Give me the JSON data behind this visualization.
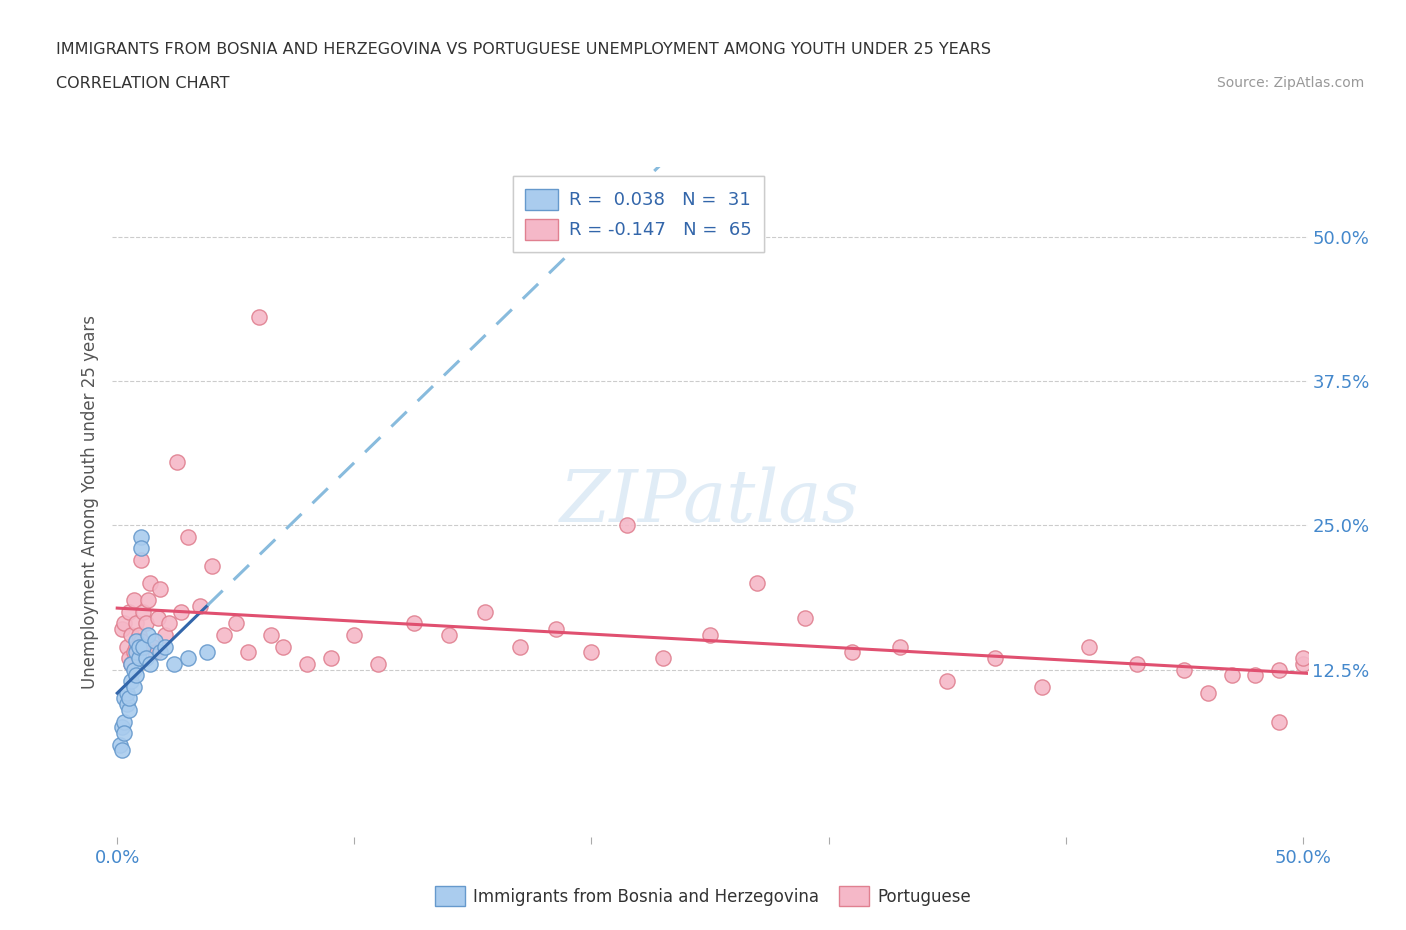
{
  "title_line1": "IMMIGRANTS FROM BOSNIA AND HERZEGOVINA VS PORTUGUESE UNEMPLOYMENT AMONG YOUTH UNDER 25 YEARS",
  "title_line2": "CORRELATION CHART",
  "source_text": "Source: ZipAtlas.com",
  "ylabel": "Unemployment Among Youth under 25 years",
  "xlim": [
    -0.002,
    0.502
  ],
  "ylim": [
    -0.02,
    0.56
  ],
  "xtick_positions": [
    0.0,
    0.1,
    0.2,
    0.3,
    0.4,
    0.5
  ],
  "xtick_labels": [
    "0.0%",
    "",
    "",
    "",
    "",
    "50.0%"
  ],
  "ytick_values": [
    0.125,
    0.25,
    0.375,
    0.5
  ],
  "ytick_labels": [
    "12.5%",
    "25.0%",
    "37.5%",
    "50.0%"
  ],
  "color_bosnia_fill": "#aaccee",
  "color_bosnia_edge": "#6699cc",
  "color_portuguese_fill": "#f5b8c8",
  "color_portuguese_edge": "#e08090",
  "color_blue_line": "#3366aa",
  "color_blue_dash": "#88bbdd",
  "color_pink_line": "#e05070",
  "watermark_text": "ZIPatlas",
  "bosnia_x": [
    0.001,
    0.002,
    0.002,
    0.003,
    0.003,
    0.003,
    0.004,
    0.004,
    0.005,
    0.005,
    0.006,
    0.006,
    0.007,
    0.007,
    0.008,
    0.008,
    0.008,
    0.009,
    0.009,
    0.01,
    0.01,
    0.011,
    0.012,
    0.013,
    0.014,
    0.016,
    0.018,
    0.02,
    0.024,
    0.03,
    0.038
  ],
  "bosnia_y": [
    0.06,
    0.055,
    0.075,
    0.1,
    0.08,
    0.07,
    0.095,
    0.105,
    0.09,
    0.1,
    0.115,
    0.13,
    0.11,
    0.125,
    0.14,
    0.15,
    0.12,
    0.135,
    0.145,
    0.24,
    0.23,
    0.145,
    0.135,
    0.155,
    0.13,
    0.15,
    0.14,
    0.145,
    0.13,
    0.135,
    0.14
  ],
  "portuguese_x": [
    0.002,
    0.003,
    0.004,
    0.005,
    0.005,
    0.006,
    0.006,
    0.007,
    0.007,
    0.008,
    0.008,
    0.009,
    0.01,
    0.01,
    0.011,
    0.012,
    0.013,
    0.014,
    0.015,
    0.016,
    0.017,
    0.018,
    0.02,
    0.022,
    0.025,
    0.027,
    0.03,
    0.035,
    0.04,
    0.045,
    0.05,
    0.055,
    0.06,
    0.065,
    0.07,
    0.08,
    0.09,
    0.1,
    0.11,
    0.125,
    0.14,
    0.155,
    0.17,
    0.185,
    0.2,
    0.215,
    0.23,
    0.25,
    0.27,
    0.29,
    0.31,
    0.33,
    0.35,
    0.37,
    0.39,
    0.41,
    0.43,
    0.45,
    0.47,
    0.49,
    0.5,
    0.5,
    0.49,
    0.48,
    0.46
  ],
  "portuguese_y": [
    0.16,
    0.165,
    0.145,
    0.135,
    0.175,
    0.155,
    0.13,
    0.14,
    0.185,
    0.165,
    0.145,
    0.155,
    0.22,
    0.15,
    0.175,
    0.165,
    0.185,
    0.2,
    0.145,
    0.14,
    0.17,
    0.195,
    0.155,
    0.165,
    0.305,
    0.175,
    0.24,
    0.18,
    0.215,
    0.155,
    0.165,
    0.14,
    0.43,
    0.155,
    0.145,
    0.13,
    0.135,
    0.155,
    0.13,
    0.165,
    0.155,
    0.175,
    0.145,
    0.16,
    0.14,
    0.25,
    0.135,
    0.155,
    0.2,
    0.17,
    0.14,
    0.145,
    0.115,
    0.135,
    0.11,
    0.145,
    0.13,
    0.125,
    0.12,
    0.08,
    0.13,
    0.135,
    0.125,
    0.12,
    0.105
  ]
}
